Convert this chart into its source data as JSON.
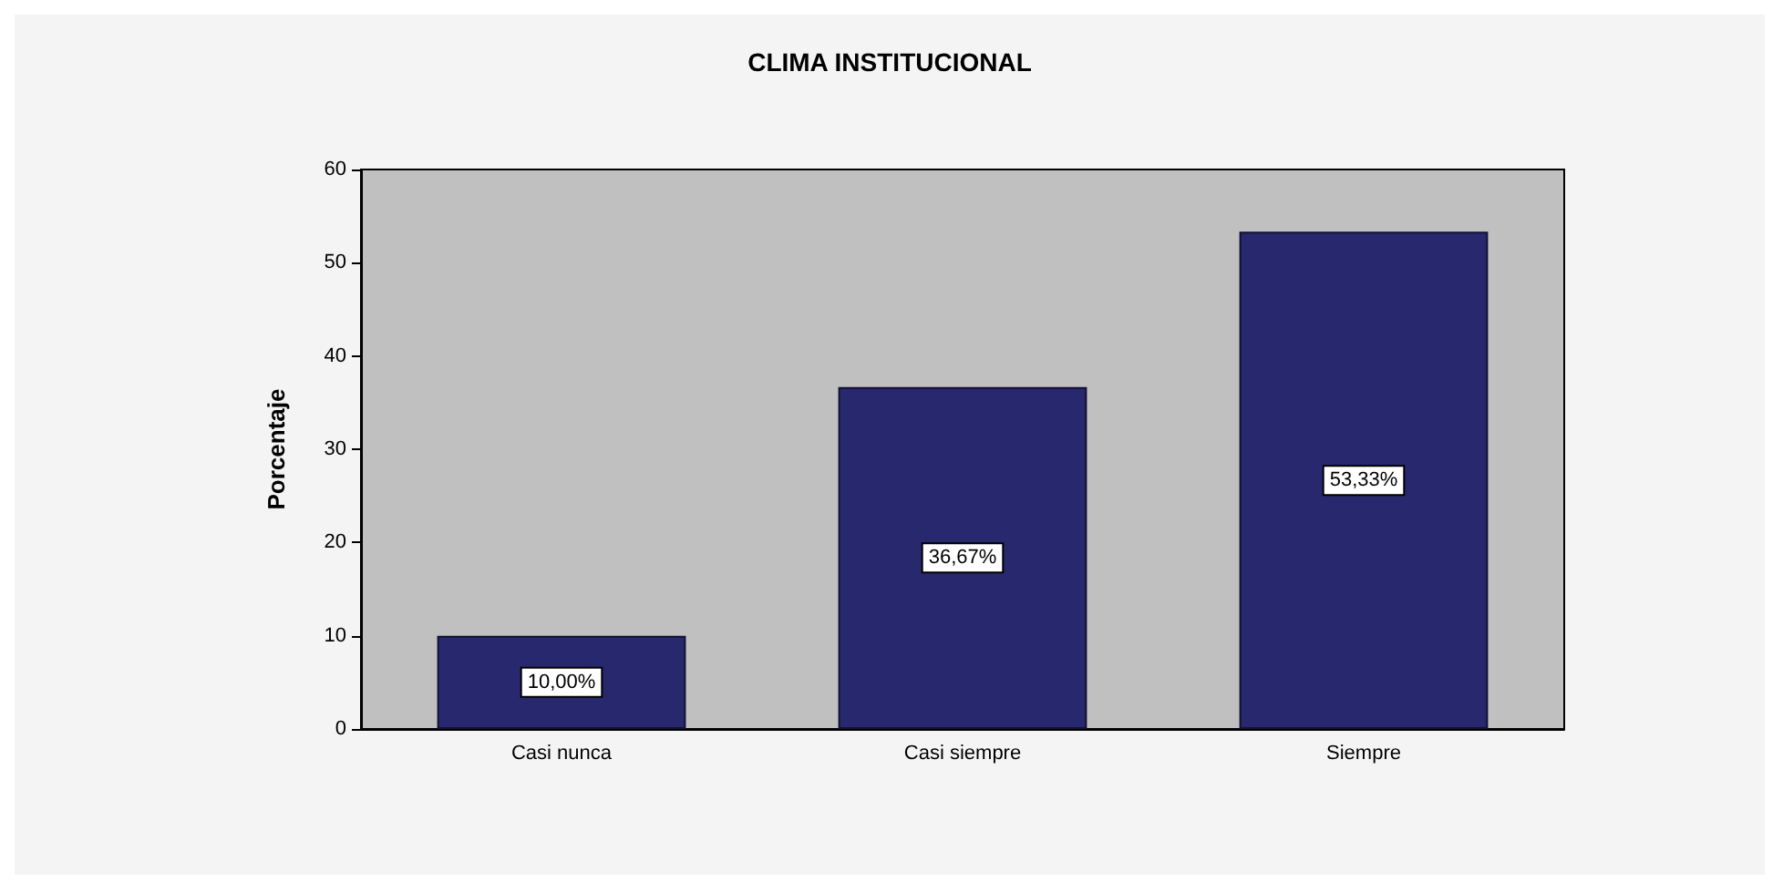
{
  "chart_data": {
    "type": "bar",
    "title": "CLIMA INSTITUCIONAL",
    "ylabel": "Porcentaje",
    "categories": [
      "Casi nunca",
      "Casi siempre",
      "Siempre"
    ],
    "values": [
      10,
      36.67,
      53.33
    ],
    "value_labels": [
      "10,00%",
      "36,67%",
      "53,33%"
    ],
    "color": "#27286e",
    "ylim": [
      0,
      60
    ],
    "yticks": [
      0,
      10,
      20,
      30,
      40,
      50,
      60
    ],
    "grid": false
  }
}
